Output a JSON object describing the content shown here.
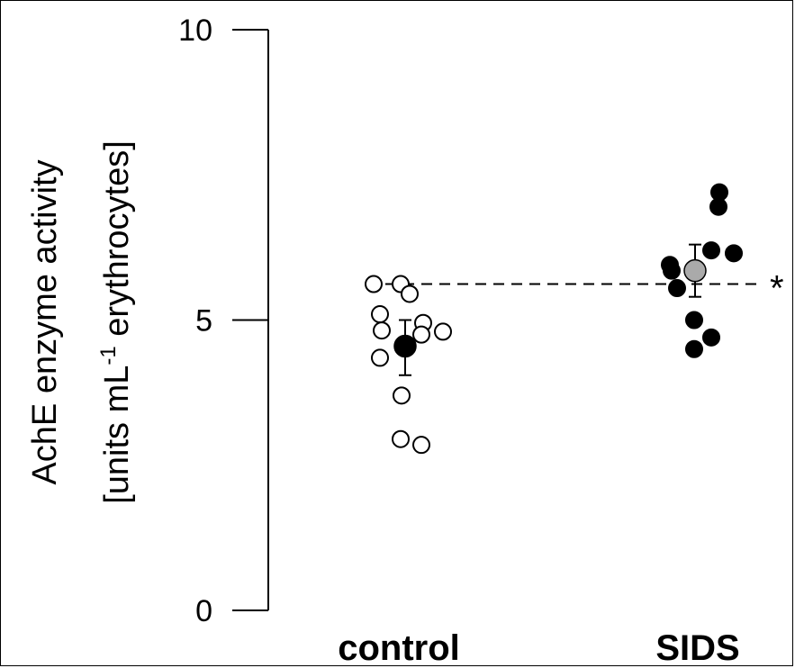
{
  "chart_data": {
    "type": "scatter",
    "ylabel_line1": "AchE enzyme activity",
    "ylabel_line2_pre": "[units mL",
    "ylabel_line2_sup": "-1",
    "ylabel_line2_post": " erythrocytes]",
    "ylim": [
      0,
      10
    ],
    "yticks": [
      "0",
      "5",
      "10"
    ],
    "categories": [
      "control",
      "SIDS"
    ],
    "reference_line": 5.62,
    "significance_label": "*",
    "grid": false,
    "groups": [
      {
        "category": "control",
        "marker": "open",
        "values": [
          5.62,
          5.62,
          5.45,
          5.1,
          4.95,
          4.82,
          4.8,
          4.75,
          4.35,
          3.7,
          2.95,
          2.85
        ],
        "mean": 4.55,
        "error": [
          4.05,
          5.0
        ],
        "mean_color": "#000000"
      },
      {
        "category": "SIDS",
        "marker": "filled",
        "values": [
          7.2,
          6.95,
          6.2,
          6.15,
          5.95,
          5.85,
          5.55,
          5.0,
          4.7,
          4.5
        ],
        "mean": 5.85,
        "error": [
          5.4,
          6.3
        ],
        "mean_color": "#aaaaaa"
      }
    ]
  }
}
